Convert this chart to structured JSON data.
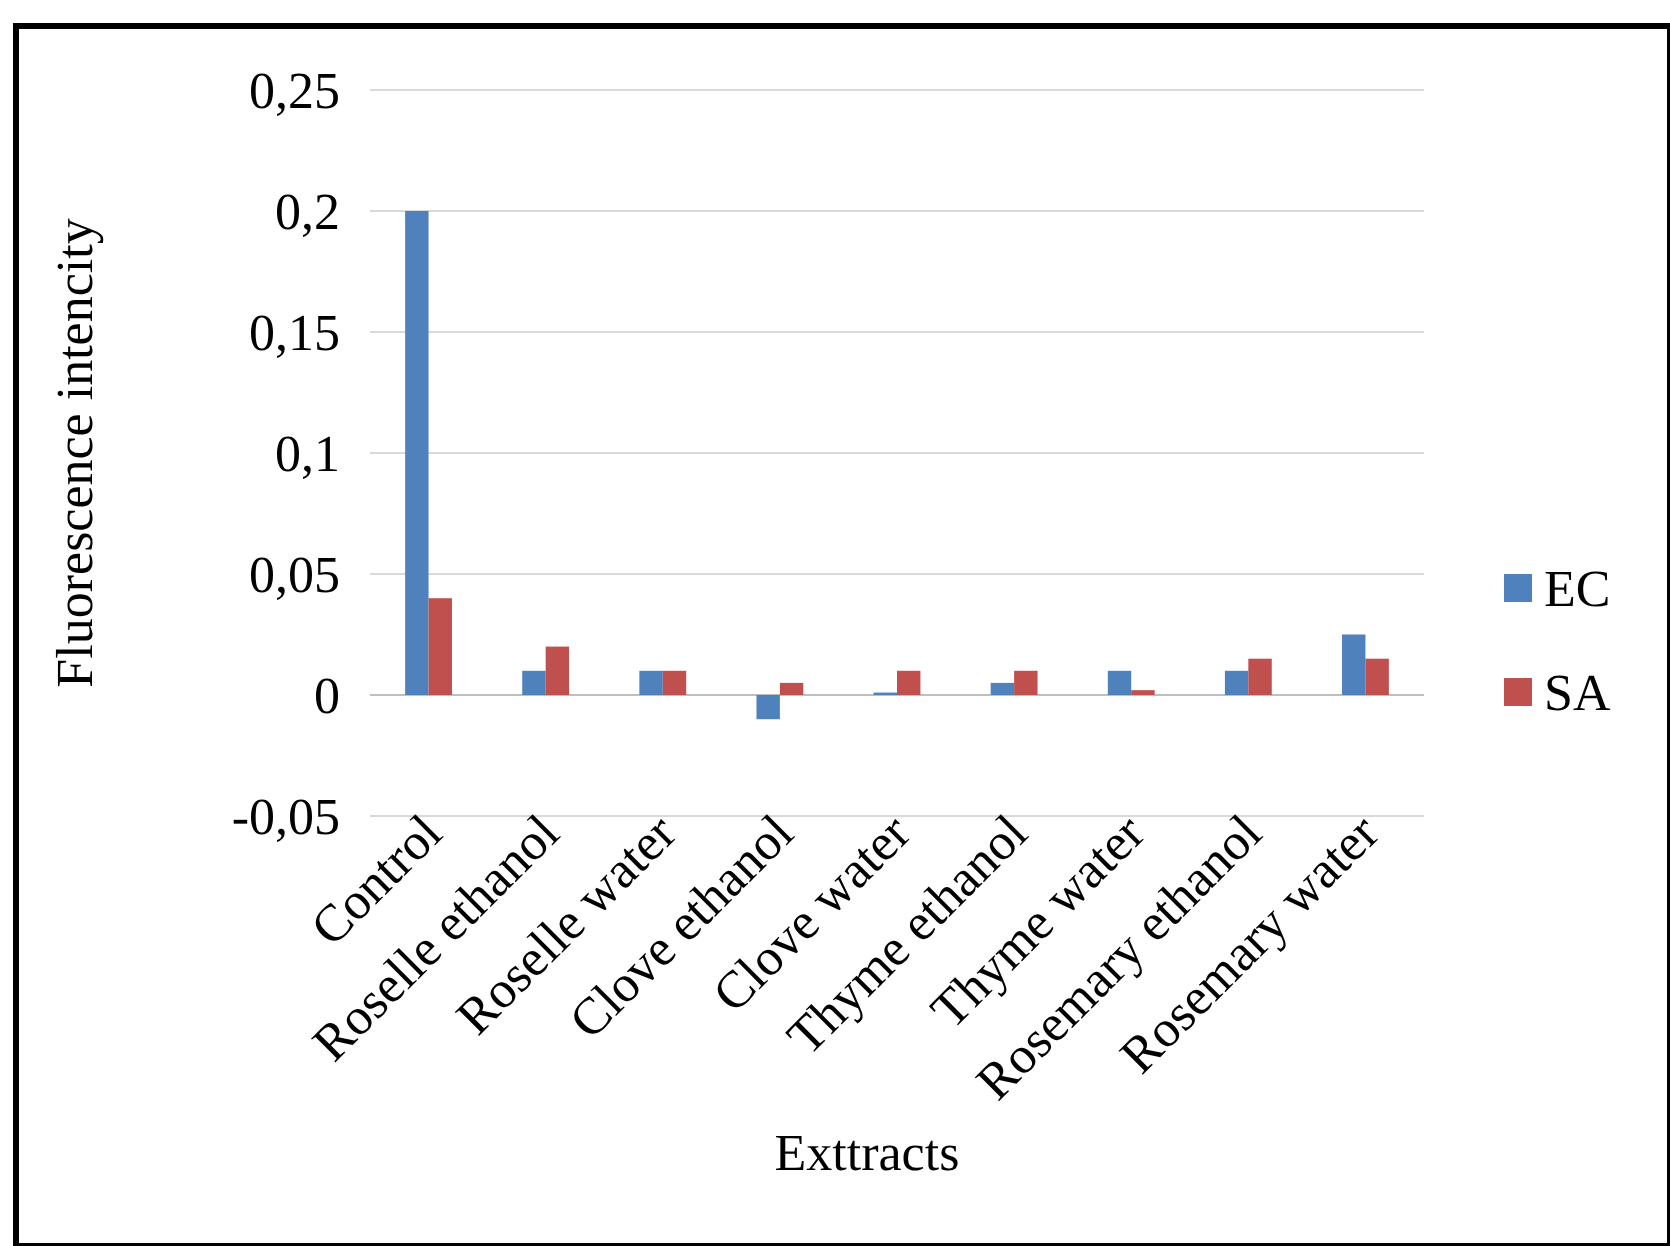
{
  "chart_data": {
    "type": "bar",
    "xlabel": "Exttracts",
    "ylabel": "Fluorescence intencity",
    "categories": [
      "Control",
      "Roselle ethanol",
      "Roselle water",
      "Clove ethanol",
      "Clove water",
      "Thyme ethanol",
      "Thyme water",
      "Rosemary ethanol",
      "Rosemary water"
    ],
    "series": [
      {
        "name": "EC",
        "color": "#4f81bd",
        "values": [
          0.2,
          0.01,
          0.01,
          -0.01,
          0.001,
          0.005,
          0.01,
          0.01,
          0.025
        ]
      },
      {
        "name": "SA",
        "color": "#c0504d",
        "values": [
          0.04,
          0.02,
          0.01,
          0.005,
          0.01,
          0.01,
          0.002,
          0.015,
          0.015
        ]
      }
    ],
    "ylim": [
      -0.05,
      0.25
    ],
    "yticks": [
      {
        "value": -0.05,
        "label": "-0,05"
      },
      {
        "value": 0,
        "label": "0"
      },
      {
        "value": 0.05,
        "label": "0,05"
      },
      {
        "value": 0.1,
        "label": "0,1"
      },
      {
        "value": 0.15,
        "label": "0,15"
      },
      {
        "value": 0.2,
        "label": "0,2"
      },
      {
        "value": 0.25,
        "label": "0,25"
      }
    ],
    "grid": "y",
    "legend": "right"
  }
}
